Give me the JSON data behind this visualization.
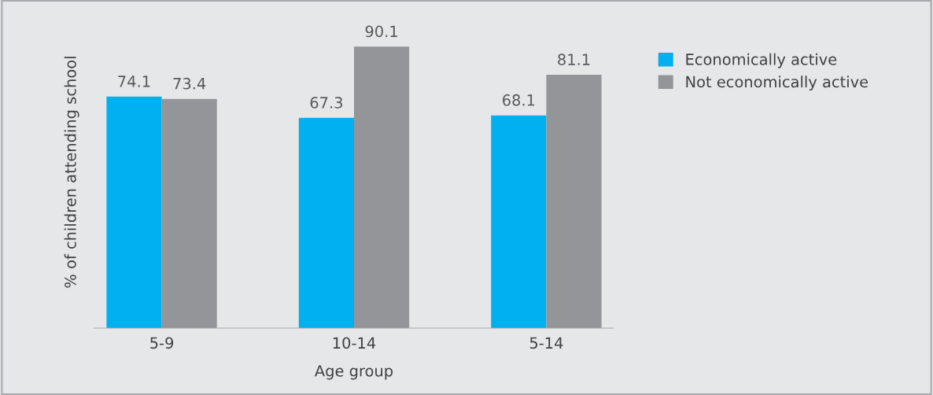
{
  "chart_data": {
    "type": "bar",
    "xlabel": "Age group",
    "ylabel": "% of children attending school",
    "categories": [
      "5-9",
      "10-14",
      "5-14"
    ],
    "series": [
      {
        "name": "Economically active",
        "color": "#00b0f0",
        "values": [
          74.1,
          67.3,
          68.1
        ]
      },
      {
        "name": "Not economically active",
        "color": "#939598",
        "values": [
          73.4,
          90.1,
          81.1
        ]
      }
    ],
    "data_labels": true,
    "tick_labels": "x",
    "grid": false,
    "legend": "top right"
  }
}
